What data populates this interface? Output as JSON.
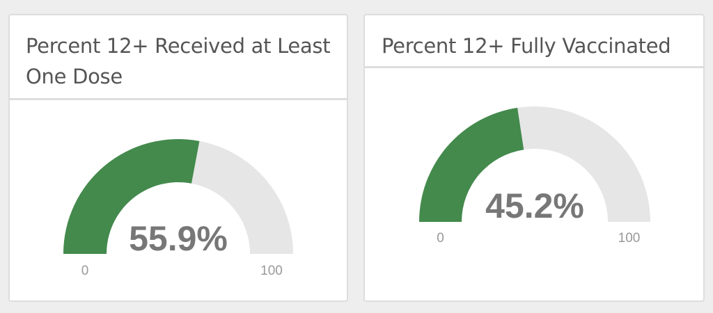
{
  "chart_data": [
    {
      "type": "gauge",
      "title": "Percent 12+ Received at Least One Dose",
      "value": 55.9,
      "value_label": "55.9%",
      "min": 0,
      "max": 100,
      "min_label": "0",
      "max_label": "100",
      "fill_color": "#438a4c",
      "track_color": "#e6e6e6"
    },
    {
      "type": "gauge",
      "title": "Percent 12+ Fully Vaccinated",
      "value": 45.2,
      "value_label": "45.2%",
      "min": 0,
      "max": 100,
      "min_label": "0",
      "max_label": "100",
      "fill_color": "#438a4c",
      "track_color": "#e6e6e6"
    }
  ]
}
